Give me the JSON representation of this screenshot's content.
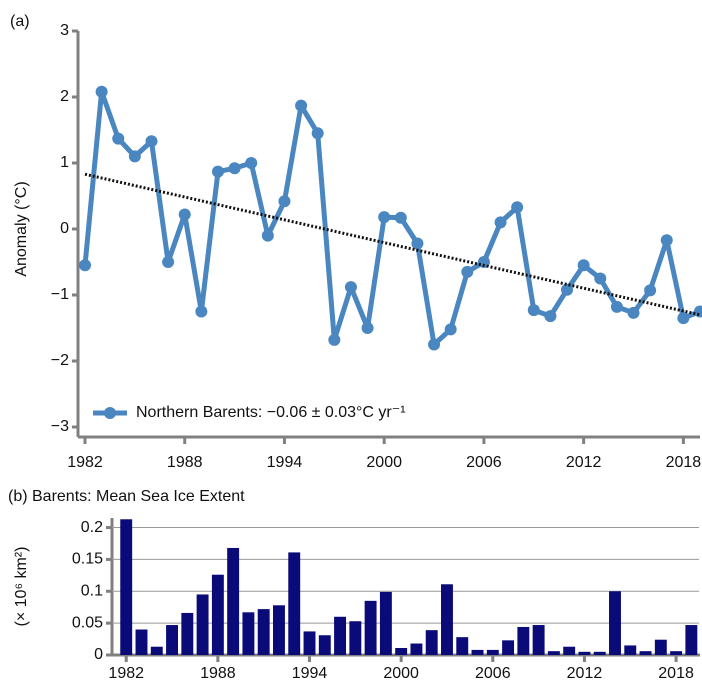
{
  "chart_data": [
    {
      "type": "line",
      "panel_label": "(a)",
      "y_label": "Anomaly (°C)",
      "x": [
        1982,
        1983,
        1984,
        1985,
        1986,
        1987,
        1988,
        1989,
        1990,
        1991,
        1992,
        1993,
        1994,
        1995,
        1996,
        1997,
        1998,
        1999,
        2000,
        2001,
        2002,
        2003,
        2004,
        2005,
        2006,
        2007,
        2008,
        2009,
        2010,
        2011,
        2012,
        2013,
        2014,
        2015,
        2016,
        2017,
        2018,
        2019
      ],
      "series": [
        {
          "name": "Northern Barents: −0.06 ± 0.03°C yr⁻¹",
          "color": "#4a86c0",
          "values": [
            -0.55,
            2.08,
            1.37,
            1.1,
            1.33,
            -0.5,
            0.22,
            -1.25,
            0.87,
            0.92,
            1.0,
            -0.1,
            0.42,
            1.87,
            1.45,
            -1.68,
            -0.88,
            -1.5,
            0.18,
            0.17,
            -0.22,
            -1.75,
            -1.52,
            -0.65,
            -0.5,
            0.1,
            0.33,
            -1.23,
            -1.32,
            -0.92,
            -0.55,
            -0.75,
            -1.18,
            -1.27,
            -0.93,
            -0.17,
            -1.35,
            -1.25
          ]
        }
      ],
      "trend": {
        "color": "#111111",
        "x": [
          1982,
          2019
        ],
        "values": [
          0.83,
          -1.3
        ]
      },
      "xlim": [
        1982,
        2019
      ],
      "xticks": [
        1982,
        1988,
        1994,
        2000,
        2006,
        2012,
        2018
      ],
      "ylim": [
        -3,
        3
      ],
      "yticks": [
        {
          "value": -3,
          "label": "−3"
        },
        {
          "value": -2,
          "label": "−2"
        },
        {
          "value": -1,
          "label": "−1"
        },
        0,
        1,
        2,
        3
      ],
      "legend": "lower left",
      "grid": false
    },
    {
      "type": "bar",
      "title": "(b) Barents: Mean Sea Ice Extent",
      "y_label": "(× 10⁶ km²)",
      "x": [
        1982,
        1983,
        1984,
        1985,
        1986,
        1987,
        1988,
        1989,
        1990,
        1991,
        1992,
        1993,
        1994,
        1995,
        1996,
        1997,
        1998,
        1999,
        2000,
        2001,
        2002,
        2003,
        2004,
        2005,
        2006,
        2007,
        2008,
        2009,
        2010,
        2011,
        2012,
        2013,
        2014,
        2015,
        2016,
        2017,
        2018,
        2019
      ],
      "values": [
        0.213,
        0.04,
        0.013,
        0.047,
        0.066,
        0.095,
        0.126,
        0.168,
        0.067,
        0.072,
        0.078,
        0.161,
        0.037,
        0.031,
        0.06,
        0.053,
        0.085,
        0.099,
        0.011,
        0.018,
        0.039,
        0.111,
        0.028,
        0.008,
        0.008,
        0.023,
        0.044,
        0.047,
        0.006,
        0.013,
        0.005,
        0.005,
        0.1,
        0.015,
        0.006,
        0.024,
        0.006,
        0.047
      ],
      "color": "#0a0a78",
      "xlim": [
        1981.2,
        2019.5
      ],
      "xticks": [
        1982,
        1988,
        1994,
        2000,
        2006,
        2012,
        2018
      ],
      "ylim": [
        0,
        0.215
      ],
      "yticks": [
        0,
        0.05,
        0.1,
        0.15,
        0.2
      ],
      "grid": true
    }
  ]
}
